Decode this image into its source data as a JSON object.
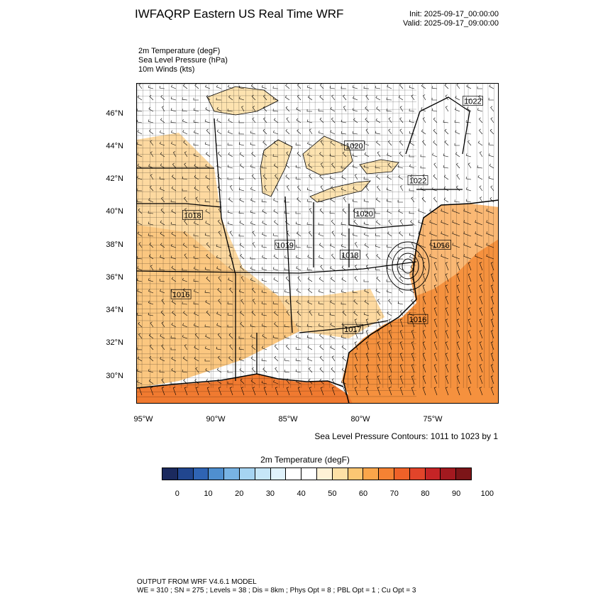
{
  "header": {
    "title": "IWFAQRP Eastern US Real Time WRF",
    "init": "Init: 2025-09-17_00:00:00",
    "valid": "Valid: 2025-09-17_09:00:00"
  },
  "fields": [
    "2m Temperature   (degF)",
    "Sea Level Pressure   (hPa)",
    "10m Winds   (kts)"
  ],
  "axes": {
    "lat_labels": [
      "46°N",
      "44°N",
      "42°N",
      "40°N",
      "38°N",
      "36°N",
      "34°N",
      "32°N",
      "30°N"
    ],
    "lon_labels": [
      "95°W",
      "90°W",
      "85°W",
      "80°W",
      "75°W"
    ]
  },
  "map_bounds": {
    "lon_min": -95.1,
    "lon_max": -70.0,
    "lat_min": 28.5,
    "lat_max": 47.9
  },
  "pressure_labels": [
    {
      "text": "1022",
      "lon": -71.8,
      "lat": 46.8
    },
    {
      "text": "1020",
      "lon": -80.0,
      "lat": 44.1
    },
    {
      "text": "1022",
      "lon": -75.6,
      "lat": 42.0
    },
    {
      "text": "1020",
      "lon": -79.3,
      "lat": 40.0
    },
    {
      "text": "1018",
      "lon": -91.2,
      "lat": 39.9
    },
    {
      "text": "1019",
      "lon": -84.8,
      "lat": 38.1
    },
    {
      "text": "1018",
      "lon": -80.3,
      "lat": 37.5
    },
    {
      "text": "1016",
      "lon": -74.0,
      "lat": 38.1
    },
    {
      "text": "1016",
      "lon": -92.0,
      "lat": 35.1
    },
    {
      "text": "1016",
      "lon": -75.6,
      "lat": 33.6
    },
    {
      "text": "1017",
      "lon": -80.1,
      "lat": 33.0
    }
  ],
  "colors": {
    "land_default": "#ffffff",
    "ocean_gulf": "#f07a30",
    "ocean_atlantic": "#f5913e",
    "warm_south": "#fbc780",
    "warm_west": "#fdd9a0",
    "lake": "#fde3b0",
    "state_line": "#000000"
  },
  "contour_note": "Sea Level Pressure Contours: 1011 to 1023 by 1",
  "colorbar": {
    "title": "2m Temperature  (degF)",
    "colors": [
      "#1b2a5e",
      "#21468f",
      "#2f64b4",
      "#4f8fcf",
      "#78b3e3",
      "#a6d4f2",
      "#c6e6f8",
      "#e0f2fb",
      "#ffffff",
      "#ffffff",
      "#fff2d6",
      "#fde0a6",
      "#fcc673",
      "#faa54a",
      "#f58233",
      "#ef6128",
      "#e2442a",
      "#c52426",
      "#a3191f",
      "#7c1518"
    ],
    "labels": [
      "0",
      "10",
      "20",
      "30",
      "40",
      "50",
      "60",
      "70",
      "80",
      "90",
      "100"
    ]
  },
  "footer": {
    "line1": "OUTPUT FROM WRF V4.6.1 MODEL",
    "line2": "WE = 310 ; SN = 275 ; Levels = 38 ; Dis = 8km ; Phys Opt = 8 ; PBL Opt = 1 ; Cu Opt = 3"
  }
}
